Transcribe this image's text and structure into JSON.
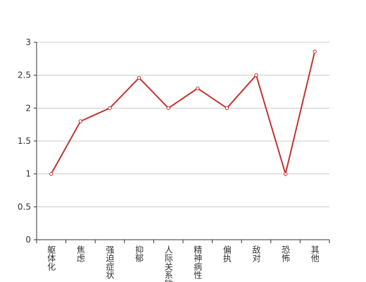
{
  "chart_data": {
    "type": "line",
    "categories": [
      "躯体化",
      "焦虑",
      "强迫症状",
      "抑郁",
      "人际关系敏感",
      "精神病性",
      "偏执",
      "敌对",
      "恐怖",
      "其他"
    ],
    "series": [
      {
        "color": "#c23531",
        "values": [
          1,
          1.8,
          2,
          2.46,
          2,
          2.3,
          2,
          2.5,
          1,
          2.86
        ]
      }
    ],
    "ylim": [
      0,
      3
    ],
    "yticks": [
      0,
      0.5,
      1,
      1.5,
      2,
      2.5,
      3
    ],
    "grid": true
  }
}
